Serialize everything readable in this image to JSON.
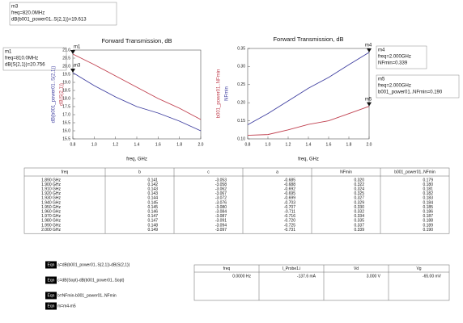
{
  "chart_data": [
    {
      "type": "line",
      "title": "Forward Transmission, dB",
      "x_label": "freq, GHz",
      "x": [
        0.8,
        1.0,
        1.2,
        1.4,
        1.6,
        1.8,
        2.0
      ],
      "series": [
        {
          "name": "dB(b001_power01..S(2,1))",
          "color": "#3f3fa0",
          "values": [
            19.6,
            18.8,
            18.1,
            17.5,
            17.1,
            16.6,
            16.0
          ]
        },
        {
          "name": "dB(S(2,1))",
          "color": "#c0404f",
          "values": [
            20.75,
            20.1,
            19.4,
            18.7,
            18.0,
            17.4,
            16.7
          ]
        }
      ],
      "xlim": [
        0.8,
        2.0
      ],
      "xticks": [
        0.8,
        {
          "value": 1.0,
          "label": "1.0"
        },
        1.2,
        1.4,
        1.6,
        1.8,
        {
          "value": 2.0,
          "label": "2.0"
        }
      ],
      "ylim": [
        15.5,
        21.0
      ],
      "yticks": [
        15.5,
        {
          "value": 16.0,
          "label": "16.0"
        },
        16.5,
        {
          "value": 17.0,
          "label": "17.0"
        },
        17.5,
        {
          "value": 18.0,
          "label": "18.0"
        },
        18.5,
        {
          "value": 19.0,
          "label": "19.0"
        },
        19.5,
        {
          "value": 20.0,
          "label": "20.0"
        },
        20.5,
        {
          "value": 21.0,
          "label": "21.0"
        }
      ]
    },
    {
      "type": "line",
      "title": "Forward Transmission, dB",
      "x_label": "freq, GHz",
      "x": [
        0.8,
        1.0,
        1.2,
        1.4,
        1.6,
        1.8,
        2.0
      ],
      "series": [
        {
          "name": "b001_power01..NFmin",
          "color": "#c0404f",
          "values": [
            0.11,
            0.112,
            0.125,
            0.14,
            0.15,
            0.17,
            0.19
          ]
        },
        {
          "name": "NFmin",
          "color": "#3f3fa0",
          "values": [
            0.139,
            0.17,
            0.205,
            0.24,
            0.27,
            0.305,
            0.339
          ]
        }
      ],
      "xlim": [
        0.8,
        2.0
      ],
      "xticks": [
        0.8,
        {
          "value": 1.0,
          "label": "1.0"
        },
        1.2,
        1.4,
        1.6,
        1.8,
        {
          "value": 2.0,
          "label": "2.0"
        }
      ],
      "ylim": [
        0.1,
        0.35
      ],
      "yticks": [
        {
          "value": 0.1,
          "label": "0.10"
        },
        0.15,
        {
          "value": 0.2,
          "label": "0.20"
        },
        0.25,
        {
          "value": 0.3,
          "label": "0.30"
        },
        0.35
      ]
    }
  ],
  "markers": [
    {
      "name": "m3",
      "lines": [
        "freq=820.0MHz",
        "dB(b001_power01..S(2,1))=19.613"
      ]
    },
    {
      "name": "m1",
      "lines": [
        "freq=810.0MHz",
        "dB(S(2,1))=20.756"
      ]
    },
    {
      "name": "m4",
      "lines": [
        "freq=2.000GHz",
        "NFmin=0.339"
      ]
    },
    {
      "name": "m5",
      "lines": [
        "freq=2.000GHz",
        "b001_power01..NFmin=0.190"
      ]
    }
  ],
  "table": {
    "headers": [
      "freq",
      "b",
      "c",
      "a",
      "NFmin",
      "b001_power01..NFmin"
    ],
    "rows": [
      [
        "1.890 GHz",
        "0.141",
        "-3.053",
        "-0.685",
        "0.320",
        "0.179"
      ],
      [
        "1.900 GHz",
        "0.142",
        "-3.058",
        "-0.688",
        "0.322",
        "0.180"
      ],
      [
        "1.910 GHz",
        "0.143",
        "-3.062",
        "-0.692",
        "0.324",
        "0.181"
      ],
      [
        "1.920 GHz",
        "0.143",
        "-3.067",
        "-0.695",
        "0.325",
        "0.182"
      ],
      [
        "1.930 GHz",
        "0.144",
        "-3.072",
        "-0.699",
        "0.327",
        "0.183"
      ],
      [
        "1.940 GHz",
        "0.145",
        "-3.076",
        "-0.703",
        "0.329",
        "0.184"
      ],
      [
        "1.950 GHz",
        "0.145",
        "-3.080",
        "-0.707",
        "0.330",
        "0.185"
      ],
      [
        "1.960 GHz",
        "0.146",
        "-3.084",
        "-0.711",
        "0.332",
        "0.186"
      ],
      [
        "1.970 GHz",
        "0.147",
        "-3.087",
        "-0.716",
        "0.334",
        "0.187"
      ],
      [
        "1.980 GHz",
        "0.147",
        "-3.091",
        "-0.720",
        "0.335",
        "0.188"
      ],
      [
        "1.990 GHz",
        "0.148",
        "-3.094",
        "-0.725",
        "0.337",
        "0.189"
      ],
      [
        "2.000 GHz",
        "0.149",
        "-3.097",
        "-0.731",
        "0.339",
        "0.190"
      ]
    ]
  },
  "equations": [
    {
      "badge": "Eqn",
      "text": "a=dB(b001_power01..S(2,1))-dB(S(2,1))"
    },
    {
      "badge": "Eqn",
      "text": "c=dB(Sopt)-dB(b001_power01..Sopt)"
    },
    {
      "badge": "Eqn",
      "text": "b=NFmin-b001_power01..NFmin"
    },
    {
      "badge": "Eqn",
      "text": "m=m4-m5"
    }
  ],
  "dc_table": {
    "headers": [
      "freq",
      "I_Probe1.i",
      "Vd",
      "Vg"
    ],
    "rows": [
      [
        "0.0000 Hz",
        "-137.6 mA",
        "3.000 V",
        "-65.00 mV"
      ]
    ]
  }
}
